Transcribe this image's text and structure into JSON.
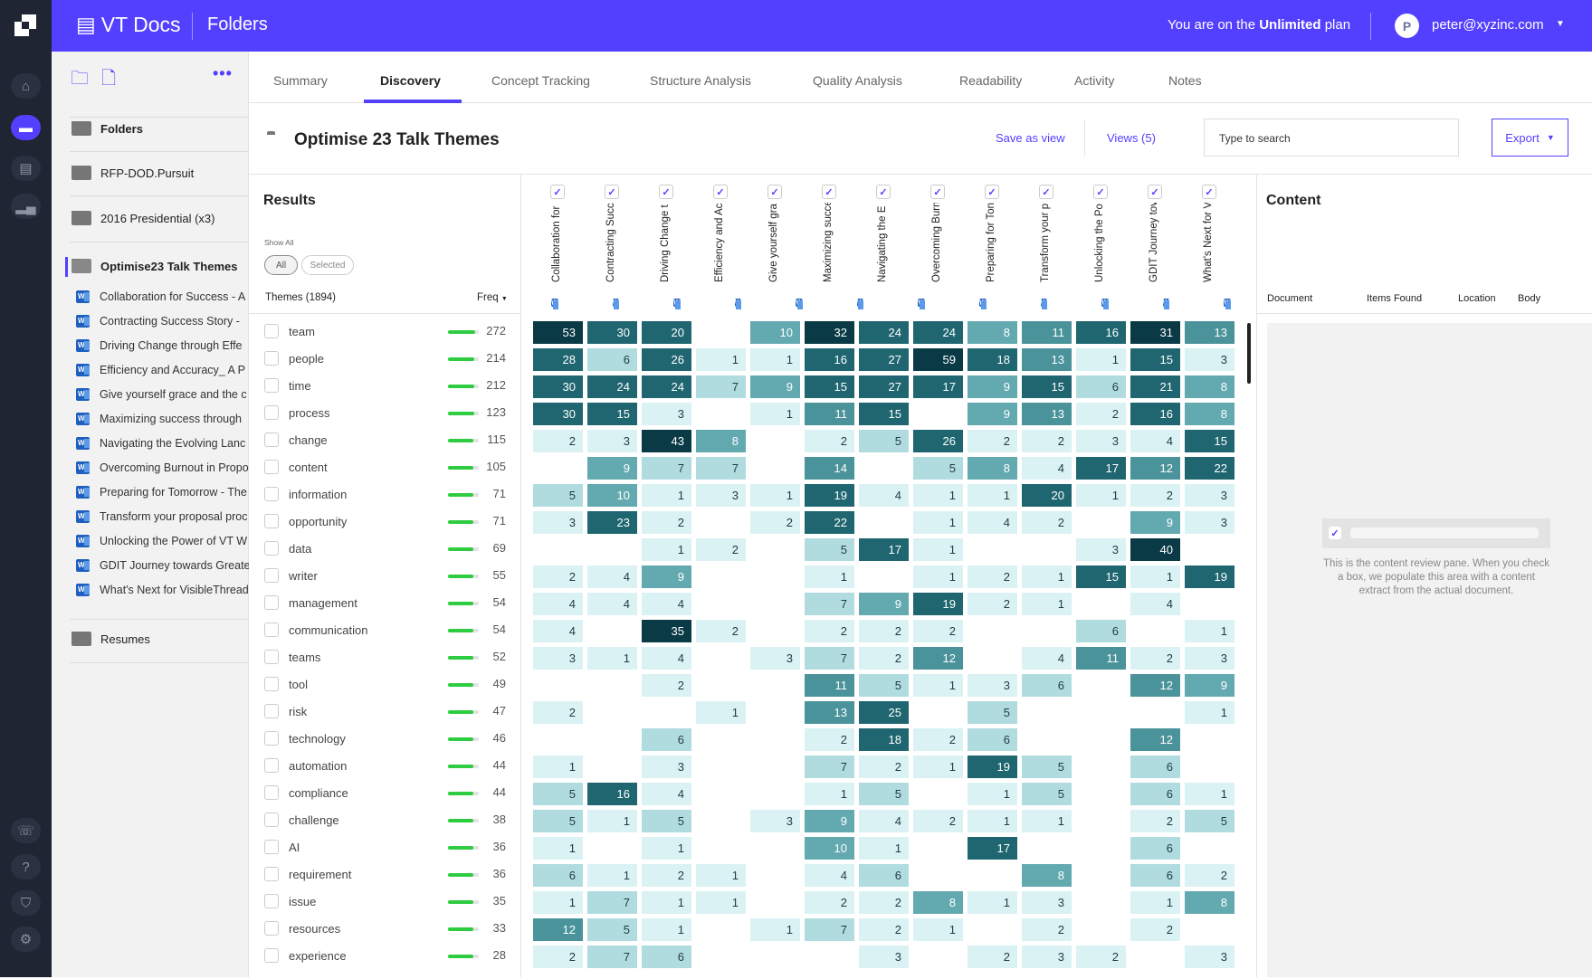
{
  "header": {
    "brand": "VT Docs",
    "section": "Folders",
    "plan_prefix": "You are on the ",
    "plan_name": "Unlimited",
    "plan_suffix": " plan",
    "avatar_initial": "P",
    "email": "peter@xyzinc.com",
    "brand_color": "#5340ff"
  },
  "rail": {
    "items": [
      "home-icon",
      "folder-icon",
      "document-icon",
      "chart-icon"
    ],
    "bottom": [
      "support-icon",
      "help-icon",
      "shield-icon",
      "settings-icon"
    ]
  },
  "sidebar": {
    "folders_label": "Folders",
    "folders": [
      "RFP-DOD.Pursuit",
      "2016 Presidential (x3)"
    ],
    "active_folder": "Optimise23 Talk Themes",
    "documents": [
      "Collaboration for Success - A",
      "Contracting Success Story - ",
      "Driving Change through Effe",
      "Efficiency and Accuracy_ A P",
      "Give yourself grace and the c",
      "Maximizing success through",
      "Navigating the Evolving Lanc",
      "Overcoming Burnout in Propo",
      "Preparing for Tomorrow - The",
      "Transform your proposal proc",
      "Unlocking the Power of VT W",
      "GDIT Journey towards Greate",
      "What's Next for VisibleThread"
    ],
    "last_folder": "Resumes"
  },
  "tabs": [
    "Summary",
    "Discovery",
    "Concept Tracking",
    "Structure Analysis",
    "Quality Analysis",
    "Readability",
    "Activity",
    "Notes"
  ],
  "active_tab": "Discovery",
  "titlebar": {
    "title": "Optimise 23 Talk Themes",
    "save_view": "Save as view",
    "views": "Views (5)",
    "search_placeholder": "Type to search",
    "export": "Export"
  },
  "results": {
    "title": "Results",
    "show_all": "Show All",
    "filter_all": "All",
    "filter_selected": "Selected",
    "themes_header": "Themes (1894)",
    "freq_header": "Freq"
  },
  "chart_data": {
    "type": "heatmap",
    "columns": [
      "Collaboration for",
      "Contracting Succ",
      "Driving Change t",
      "Efficiency and Ac",
      "Give yourself gra",
      "Maximizing succe",
      "Navigating the E ",
      "Overcoming Burn",
      "Preparing for Ton",
      "Transform your p",
      "Unlocking the Po",
      "GDIT Journey tov",
      "What's Next for V"
    ],
    "rows": [
      {
        "theme": "team",
        "freq": 272,
        "values": [
          53,
          30,
          20,
          null,
          10,
          32,
          24,
          24,
          8,
          11,
          16,
          31,
          13
        ]
      },
      {
        "theme": "people",
        "freq": 214,
        "values": [
          28,
          6,
          26,
          1,
          1,
          16,
          27,
          59,
          18,
          13,
          1,
          15,
          3
        ]
      },
      {
        "theme": "time",
        "freq": 212,
        "values": [
          30,
          24,
          24,
          7,
          9,
          15,
          27,
          17,
          9,
          15,
          6,
          21,
          8
        ]
      },
      {
        "theme": "process",
        "freq": 123,
        "values": [
          30,
          15,
          3,
          null,
          1,
          11,
          15,
          null,
          9,
          13,
          2,
          16,
          8
        ]
      },
      {
        "theme": "change",
        "freq": 115,
        "values": [
          2,
          3,
          43,
          8,
          null,
          2,
          5,
          26,
          2,
          2,
          3,
          4,
          15
        ]
      },
      {
        "theme": "content",
        "freq": 105,
        "values": [
          null,
          9,
          7,
          7,
          null,
          14,
          null,
          5,
          8,
          4,
          17,
          12,
          22
        ]
      },
      {
        "theme": "information",
        "freq": 71,
        "values": [
          5,
          10,
          1,
          3,
          1,
          19,
          4,
          1,
          1,
          20,
          1,
          2,
          3
        ]
      },
      {
        "theme": "opportunity",
        "freq": 71,
        "values": [
          3,
          23,
          2,
          null,
          2,
          22,
          null,
          1,
          4,
          2,
          null,
          9,
          3
        ]
      },
      {
        "theme": "data",
        "freq": 69,
        "values": [
          null,
          null,
          1,
          2,
          null,
          5,
          17,
          1,
          null,
          null,
          3,
          40,
          null
        ]
      },
      {
        "theme": "writer",
        "freq": 55,
        "values": [
          2,
          4,
          9,
          null,
          null,
          1,
          null,
          1,
          2,
          1,
          15,
          1,
          19
        ]
      },
      {
        "theme": "management",
        "freq": 54,
        "values": [
          4,
          4,
          4,
          null,
          null,
          7,
          9,
          19,
          2,
          1,
          null,
          4,
          null
        ]
      },
      {
        "theme": "communication",
        "freq": 54,
        "values": [
          4,
          null,
          35,
          2,
          null,
          2,
          2,
          2,
          null,
          null,
          6,
          null,
          1
        ]
      },
      {
        "theme": "teams",
        "freq": 52,
        "values": [
          3,
          1,
          4,
          null,
          3,
          7,
          2,
          12,
          null,
          4,
          11,
          2,
          3
        ]
      },
      {
        "theme": "tool",
        "freq": 49,
        "values": [
          null,
          null,
          2,
          null,
          null,
          11,
          5,
          1,
          3,
          6,
          null,
          12,
          9
        ]
      },
      {
        "theme": "risk",
        "freq": 47,
        "values": [
          2,
          null,
          null,
          1,
          null,
          13,
          25,
          null,
          5,
          null,
          null,
          null,
          1
        ]
      },
      {
        "theme": "technology",
        "freq": 46,
        "values": [
          null,
          null,
          6,
          null,
          null,
          2,
          18,
          2,
          6,
          null,
          null,
          12,
          null
        ]
      },
      {
        "theme": "automation",
        "freq": 44,
        "values": [
          1,
          null,
          3,
          null,
          null,
          7,
          2,
          1,
          19,
          5,
          null,
          6,
          null
        ]
      },
      {
        "theme": "compliance",
        "freq": 44,
        "values": [
          5,
          16,
          4,
          null,
          null,
          1,
          5,
          null,
          1,
          5,
          null,
          6,
          1
        ]
      },
      {
        "theme": "challenge",
        "freq": 38,
        "values": [
          5,
          1,
          5,
          null,
          3,
          9,
          4,
          2,
          1,
          1,
          null,
          2,
          5
        ]
      },
      {
        "theme": "AI",
        "freq": 36,
        "values": [
          1,
          null,
          1,
          null,
          null,
          10,
          1,
          null,
          17,
          null,
          null,
          6,
          null
        ]
      },
      {
        "theme": "requirement",
        "freq": 36,
        "values": [
          6,
          1,
          2,
          1,
          null,
          4,
          6,
          null,
          null,
          8,
          null,
          6,
          2
        ]
      },
      {
        "theme": "issue",
        "freq": 35,
        "values": [
          1,
          7,
          1,
          1,
          null,
          2,
          2,
          8,
          1,
          3,
          null,
          1,
          8
        ]
      },
      {
        "theme": "resources",
        "freq": 33,
        "values": [
          12,
          5,
          1,
          null,
          1,
          7,
          2,
          1,
          null,
          2,
          null,
          2,
          null
        ]
      },
      {
        "theme": "experience",
        "freq": 28,
        "values": [
          2,
          7,
          6,
          null,
          null,
          null,
          3,
          null,
          2,
          3,
          2,
          null,
          3
        ]
      }
    ],
    "palette": [
      "#daf2f3",
      "#b1dcdf",
      "#63a9b0",
      "#4a939a",
      "#1f6670",
      "#0a3a45"
    ]
  },
  "content": {
    "title": "Content",
    "columns": [
      "Document",
      "Items Found",
      "Location",
      "Body"
    ],
    "placeholder": "This is the content review pane. When you check a box, we populate this area with a content extract from the actual document."
  }
}
